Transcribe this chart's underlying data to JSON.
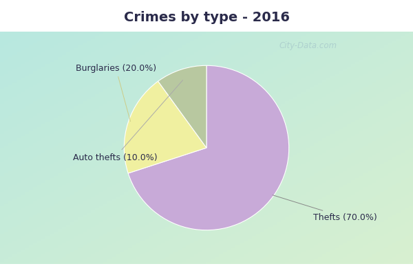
{
  "title": "Crimes by type - 2016",
  "slices": [
    {
      "label": "Thefts (70.0%)",
      "value": 70,
      "color": "#c8aad8"
    },
    {
      "label": "Burglaries (20.0%)",
      "value": 20,
      "color": "#f0f0a0"
    },
    {
      "label": "Auto thefts (10.0%)",
      "value": 10,
      "color": "#b8c8a0"
    }
  ],
  "title_bg": "#00e8f8",
  "main_bg_tl": "#b8e8e0",
  "main_bg_br": "#d8ecd8",
  "title_fontsize": 14,
  "watermark": "City-Data.com",
  "label_fontsize": 9,
  "startangle": 90,
  "title_color": "#2a2a4a",
  "label_color": "#2a2a4a",
  "watermark_color": "#aacccc",
  "cyan_bar_height": 0.115
}
